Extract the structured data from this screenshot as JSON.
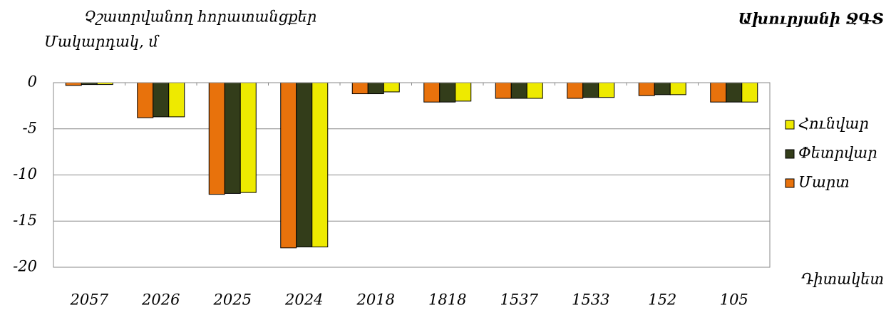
{
  "chart_data": {
    "type": "bar",
    "title": "Չշատրվանող հորատանցքեր",
    "subtitle": "Ախուրյանի ՋԳՏ",
    "y_label": "Մակարդակ, մ",
    "x_label": "Դիտակետ",
    "categories": [
      "2057",
      "2026",
      "2025",
      "2024",
      "2018",
      "1818",
      "1537",
      "1533",
      "152",
      "105"
    ],
    "series": [
      {
        "name": "Մարտ",
        "color": "#e8720c",
        "values": [
          -0.3,
          -3.8,
          -12.1,
          -17.9,
          -1.2,
          -2.1,
          -1.7,
          -1.7,
          -1.4,
          -2.1
        ]
      },
      {
        "name": "Փետրվար",
        "color": "#333d1a",
        "values": [
          -0.2,
          -3.7,
          -12.0,
          -17.8,
          -1.2,
          -2.1,
          -1.7,
          -1.6,
          -1.3,
          -2.1
        ]
      },
      {
        "name": "Հունվար",
        "color": "#eeea00",
        "values": [
          -0.2,
          -3.7,
          -11.9,
          -17.8,
          -1.0,
          -2.0,
          -1.7,
          -1.6,
          -1.3,
          -2.1
        ]
      }
    ],
    "ylim": [
      -20,
      0
    ],
    "yticks": [
      0,
      -5,
      -10,
      -15,
      -20
    ],
    "grid": true,
    "legend": "right"
  }
}
